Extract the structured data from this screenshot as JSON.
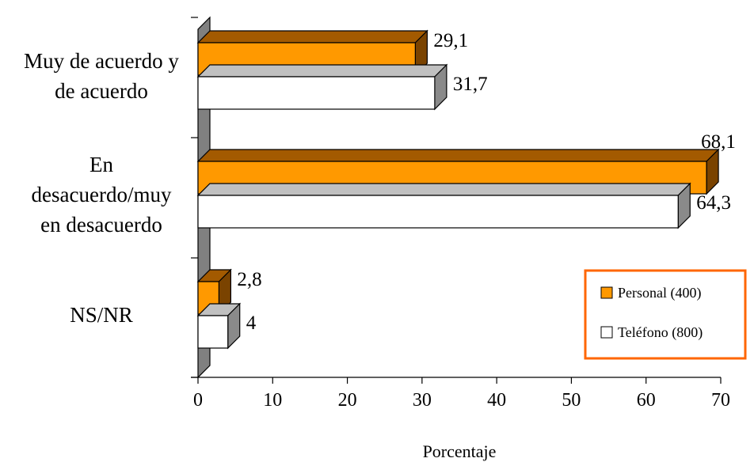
{
  "chart_data": {
    "type": "bar",
    "orientation": "horizontal",
    "three_d": true,
    "categories": [
      [
        "Muy de acuerdo y",
        "de acuerdo"
      ],
      [
        "En",
        "desacuerdo/muy",
        "en desacuerdo"
      ],
      [
        "NS/NR"
      ]
    ],
    "series": [
      {
        "name": "Personal (400)",
        "values": [
          29.1,
          68.1,
          2.8
        ],
        "labels": [
          "29,1",
          "68,1",
          "2,8"
        ],
        "color": "#FF9900"
      },
      {
        "name": "Teléfono (800)",
        "values": [
          31.7,
          64.3,
          4
        ],
        "labels": [
          "31,7",
          "64,3",
          "4"
        ],
        "color": "#FFFFFF"
      }
    ],
    "xlabel": "Porcentaje",
    "xlim": [
      0,
      70
    ],
    "xticks": [
      "0",
      "10",
      "20",
      "30",
      "40",
      "50",
      "60",
      "70"
    ],
    "legend_position": "bottom-right",
    "legend_border_color": "#FF6600",
    "wall_color": "#808080",
    "grid": false
  }
}
